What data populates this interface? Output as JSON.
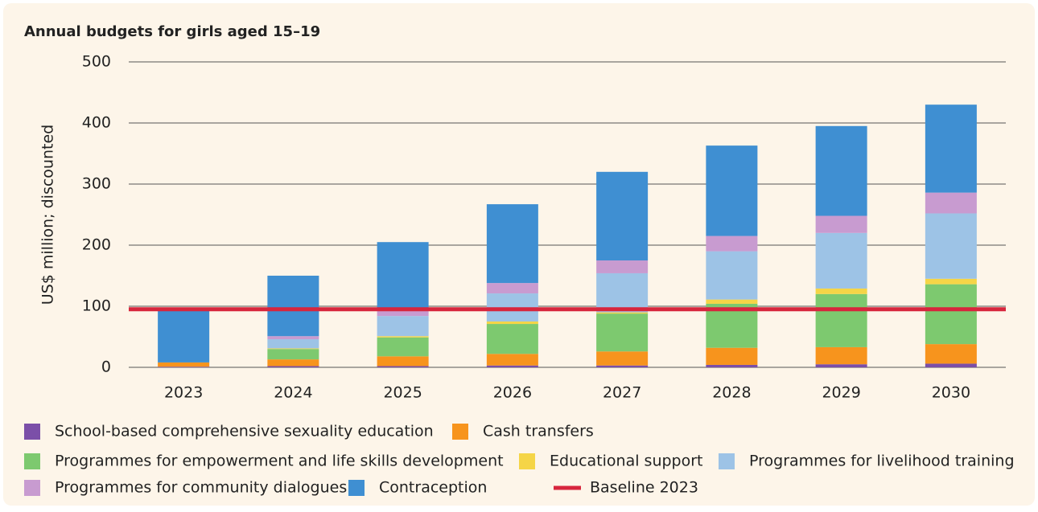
{
  "chart_data": {
    "type": "stacked_bar",
    "title": "Annual budgets for girls aged 15–19",
    "y_label": "US$ million; discounted",
    "categories": [
      "2023",
      "2024",
      "2025",
      "2026",
      "2027",
      "2028",
      "2029",
      "2030"
    ],
    "series": [
      {
        "name": "School-based comprehensive sexuality education",
        "color": "#7b4fa8",
        "values": [
          1,
          2,
          2,
          3,
          3,
          4,
          5,
          6
        ]
      },
      {
        "name": "Cash transfers",
        "color": "#f7941d",
        "values": [
          7,
          11,
          16,
          19,
          23,
          28,
          28,
          32
        ]
      },
      {
        "name": "Programmes for empowerment and life skills development",
        "color": "#7dc96f",
        "values": [
          0,
          17,
          31,
          49,
          62,
          72,
          87,
          98
        ]
      },
      {
        "name": "Educational support",
        "color": "#f5d547",
        "values": [
          0,
          1,
          2,
          4,
          2,
          7,
          9,
          9
        ]
      },
      {
        "name": "Programmes for livelihood training",
        "color": "#9dc3e6",
        "values": [
          0,
          15,
          33,
          46,
          64,
          79,
          91,
          107
        ]
      },
      {
        "name": "Programmes for community dialogues",
        "color": "#c89bd0",
        "values": [
          0,
          5,
          12,
          17,
          21,
          25,
          28,
          34
        ]
      },
      {
        "name": "Contraception",
        "color": "#3f8fd2",
        "values": [
          87,
          99,
          109,
          129,
          145,
          148,
          147,
          144
        ]
      }
    ],
    "baseline": {
      "name": "Baseline 2023",
      "value": 95,
      "color": "#d7263d"
    },
    "ylim": [
      0,
      500
    ],
    "yticks": [
      0,
      100,
      200,
      300,
      400,
      500
    ],
    "grid": true
  }
}
